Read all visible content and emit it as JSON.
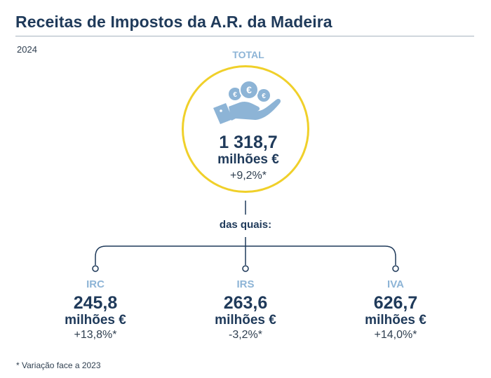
{
  "header": {
    "title": "Receitas de Impostos da A.R. da Madeira",
    "year": "2024"
  },
  "total": {
    "label": "TOTAL",
    "value": "1 318,7",
    "unit": "milhões €",
    "change": "+9,2%*",
    "icon": "hand-holding-euro-coins-icon"
  },
  "connector_label": "das quais:",
  "breakdown": [
    {
      "name": "IRC",
      "value": "245,8",
      "unit": "milhões €",
      "change": "+13,8%*"
    },
    {
      "name": "IRS",
      "value": "263,6",
      "unit": "milhões €",
      "change": "-3,2%*"
    },
    {
      "name": "IVA",
      "value": "626,7",
      "unit": "milhões €",
      "change": "+14,0%*"
    }
  ],
  "footnote": "* Variação face a 2023",
  "colors": {
    "title": "#1f3a5a",
    "accent_circle": "#f0d02a",
    "label_blue": "#8db4d6",
    "connector": "#1f3a5a"
  }
}
